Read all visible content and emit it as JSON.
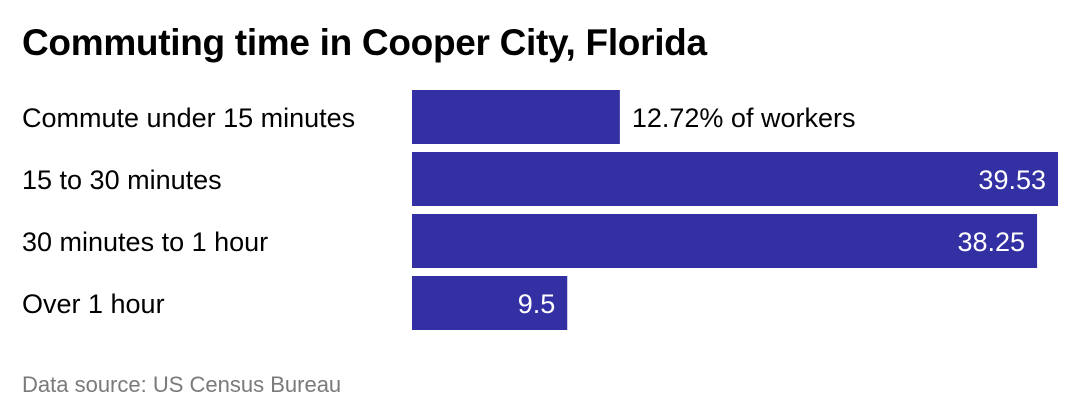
{
  "chart_data": {
    "type": "bar",
    "orientation": "horizontal",
    "title": "Commuting time in Cooper City, Florida",
    "categories": [
      "Commute under 15 minutes",
      "15 to 30 minutes",
      "30 minutes to 1 hour",
      "Over 1 hour"
    ],
    "values": [
      12.72,
      39.53,
      38.25,
      9.5
    ],
    "value_labels": [
      "12.72% of workers",
      "39.53",
      "38.25",
      "9.5"
    ],
    "xlim": [
      0,
      39.53
    ],
    "grid": false,
    "bar_color": "#3330a3",
    "source": "Data source: US Census Bureau"
  }
}
